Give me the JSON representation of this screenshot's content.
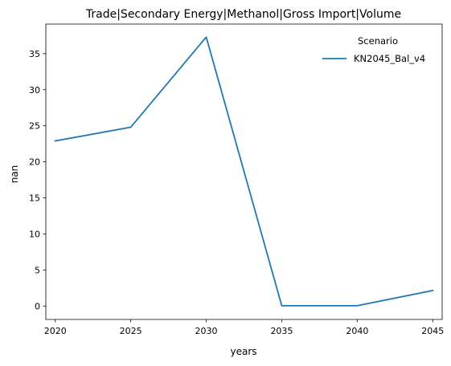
{
  "chart_data": {
    "type": "line",
    "title": "Trade|Secondary Energy|Methanol|Gross Import|Volume",
    "xlabel": "years",
    "ylabel": "nan",
    "x": [
      2020,
      2025,
      2030,
      2035,
      2040,
      2045
    ],
    "xticks": [
      "2020",
      "2025",
      "2030",
      "2035",
      "2040",
      "2045"
    ],
    "xlim": [
      2019.375,
      2045.625
    ],
    "yticks": [
      "0",
      "5",
      "10",
      "15",
      "20",
      "25",
      "30",
      "35"
    ],
    "ylim": [
      -1.86,
      39.1
    ],
    "legend": {
      "title": "Scenario",
      "placement": "top-right"
    },
    "series": [
      {
        "name": "KN2045_Bal_v4",
        "color": "#1f77b4",
        "values": [
          22.9,
          24.8,
          37.3,
          0.05,
          0.05,
          2.15
        ]
      }
    ],
    "grid": false
  }
}
